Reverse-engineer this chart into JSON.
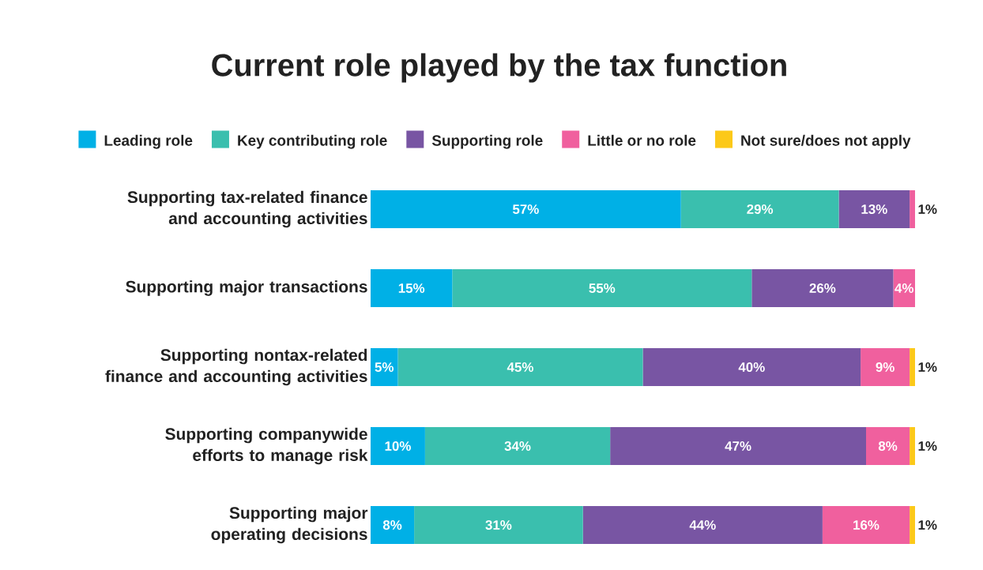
{
  "chart_data": {
    "type": "bar",
    "orientation": "horizontal",
    "stacked": true,
    "title": "Current role played by the tax function",
    "categories": [
      "Supporting tax-related finance and accounting activities",
      "Supporting major transactions",
      "Supporting nontax-related finance and accounting activities",
      "Supporting companywide efforts to manage risk",
      "Supporting major operating decisions"
    ],
    "series": [
      {
        "name": "Leading role",
        "color": "#00b0e6",
        "values": [
          57,
          15,
          5,
          10,
          8
        ],
        "value_labels": [
          "57%",
          "15%",
          "5%",
          "10%",
          "8%"
        ]
      },
      {
        "name": "Key contributing role",
        "color": "#3abfae",
        "values": [
          29,
          55,
          45,
          34,
          31
        ],
        "value_labels": [
          "29%",
          "55%",
          "45%",
          "34%",
          "31%"
        ]
      },
      {
        "name": "Supporting role",
        "color": "#7855a3",
        "values": [
          13,
          26,
          40,
          47,
          44
        ],
        "value_labels": [
          "13%",
          "26%",
          "40%",
          "47%",
          "44%"
        ]
      },
      {
        "name": "Little or no role",
        "color": "#f0609e",
        "values": [
          1,
          4,
          9,
          8,
          16
        ],
        "value_labels": [
          "1%",
          "4%",
          "9%",
          "8%",
          "16%"
        ]
      },
      {
        "name": "Not sure/does not apply",
        "color": "#fcc919",
        "values": [
          0,
          0,
          1,
          1,
          1
        ],
        "value_labels": [
          null,
          null,
          "1%",
          "1%",
          "1%"
        ]
      }
    ],
    "xlim": [
      0,
      100
    ],
    "tick_labels": "y",
    "legend": "top"
  }
}
